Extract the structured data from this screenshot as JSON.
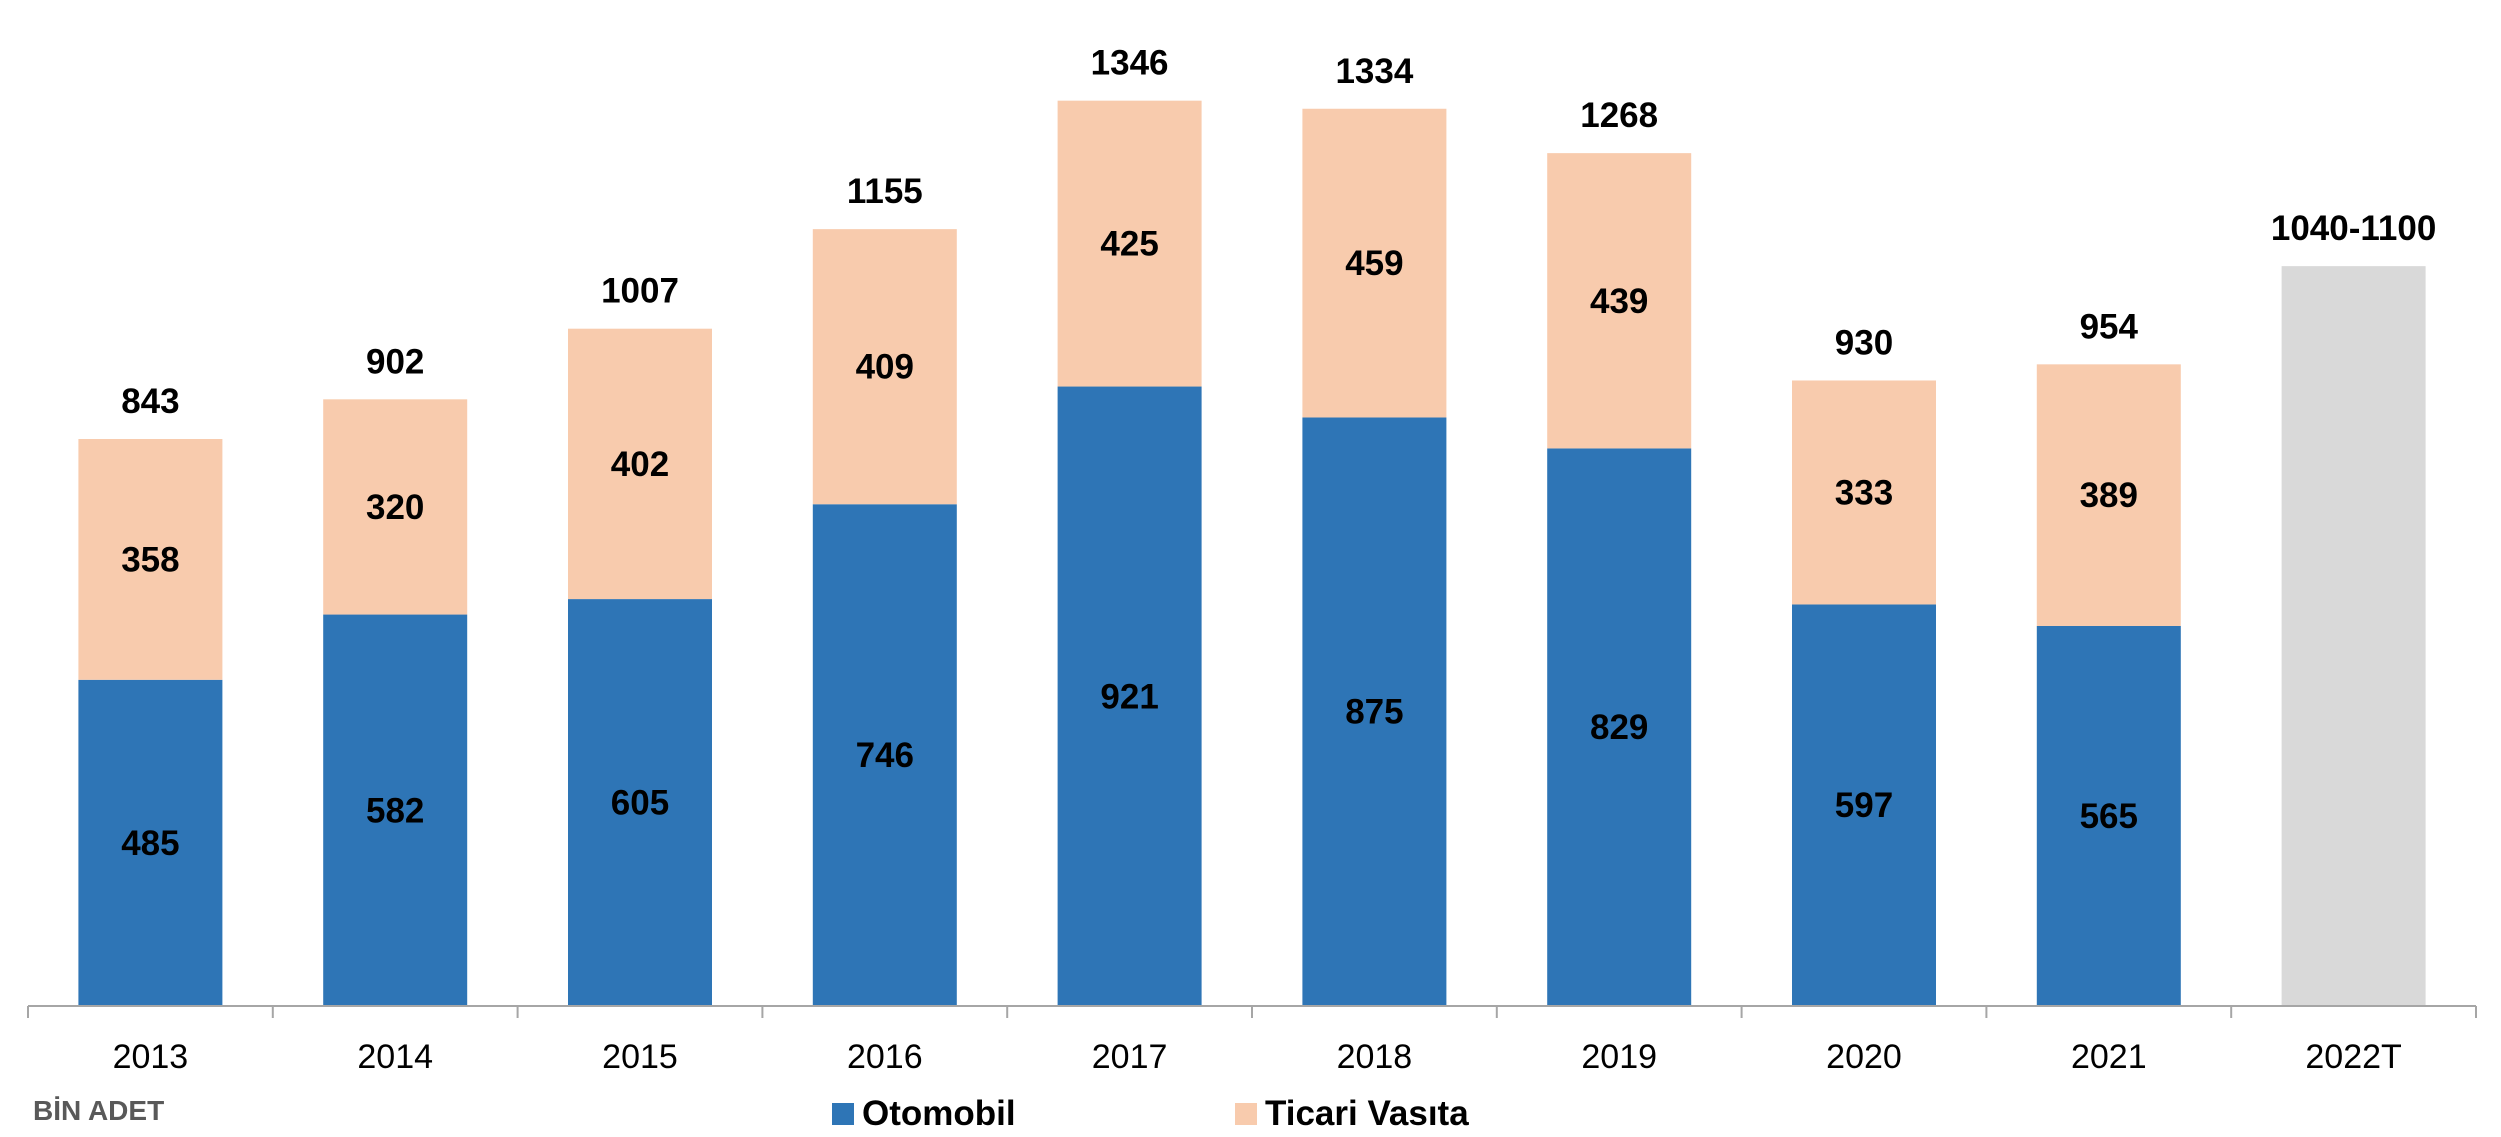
{
  "chart_data": {
    "type": "bar",
    "stacked": true,
    "categories": [
      "2013",
      "2014",
      "2015",
      "2016",
      "2017",
      "2018",
      "2019",
      "2020",
      "2021",
      "2022T"
    ],
    "series": [
      {
        "name": "Otomobil",
        "color": "#2E75B6",
        "values": [
          485,
          582,
          605,
          746,
          921,
          875,
          829,
          597,
          565,
          null
        ]
      },
      {
        "name": "Ticari Vasıta",
        "color": "#F8CBAD",
        "values": [
          358,
          320,
          402,
          409,
          425,
          459,
          439,
          333,
          389,
          null
        ]
      }
    ],
    "totals": [
      "843",
      "902",
      "1007",
      "1155",
      "1346",
      "1334",
      "1268",
      "930",
      "954",
      "1040-1100"
    ],
    "forecast": {
      "category": "2022T",
      "label": "1040-1100",
      "value_low": 1040,
      "value_high": 1100,
      "color": "#D9D9D9"
    },
    "ylim": [
      0,
      1425
    ],
    "unit_label": "BİN ADET",
    "legend_position": "bottom",
    "grid": false
  }
}
